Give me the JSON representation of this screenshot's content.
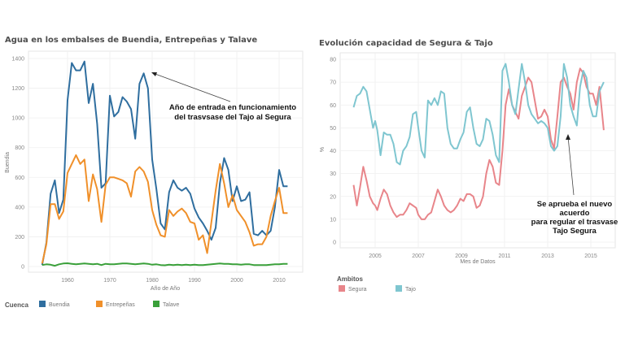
{
  "chart_data": [
    {
      "type": "line",
      "title": "Agua en los embalses de Buendia, Entrepeñas y Talave",
      "xlabel": "Año de Año",
      "ylabel": "Buendia",
      "xlim": [
        1950.7,
        2015.5
      ],
      "ylim": [
        0,
        1400
      ],
      "yticks": [
        0,
        200,
        400,
        600,
        800,
        1000,
        1200,
        1400
      ],
      "xticks": [
        1960,
        1970,
        1980,
        1990,
        2000,
        2010
      ],
      "grid": true,
      "legend": {
        "title": "Cuenca",
        "placement": "bottom-left"
      },
      "annotation": {
        "lines": [
          "Año de entrada en funcionamiento",
          "del trasvsase del Tajo al Segura"
        ],
        "points_to": {
          "x": 1980,
          "y": 1300
        }
      },
      "x": [
        1954,
        1955,
        1956,
        1957,
        1958,
        1959,
        1960,
        1961,
        1962,
        1963,
        1964,
        1965,
        1966,
        1967,
        1968,
        1969,
        1970,
        1971,
        1972,
        1973,
        1974,
        1975,
        1976,
        1977,
        1978,
        1979,
        1980,
        1981,
        1982,
        1983,
        1984,
        1985,
        1986,
        1987,
        1988,
        1989,
        1990,
        1991,
        1992,
        1993,
        1994,
        1995,
        1996,
        1997,
        1998,
        1999,
        2000,
        2001,
        2002,
        2003,
        2004,
        2005,
        2006,
        2007,
        2008,
        2009,
        2010,
        2011,
        2012
      ],
      "series": [
        {
          "name": "Buendia",
          "color": "#2f6e9f",
          "values": [
            10,
            160,
            490,
            580,
            360,
            450,
            1120,
            1370,
            1320,
            1320,
            1380,
            1100,
            1230,
            960,
            530,
            560,
            1150,
            1010,
            1040,
            1140,
            1110,
            1060,
            860,
            1230,
            1300,
            1200,
            720,
            520,
            290,
            250,
            500,
            580,
            530,
            510,
            530,
            490,
            390,
            330,
            290,
            240,
            180,
            260,
            560,
            730,
            650,
            440,
            540,
            440,
            450,
            500,
            220,
            210,
            240,
            210,
            240,
            400,
            650,
            540,
            540
          ],
          "_note": "values"
        },
        {
          "name": "Entrepeñas",
          "color": "#f0902a",
          "values": [
            20,
            150,
            420,
            420,
            320,
            370,
            630,
            690,
            750,
            690,
            720,
            440,
            620,
            520,
            300,
            550,
            600,
            600,
            590,
            580,
            560,
            470,
            640,
            670,
            640,
            570,
            380,
            280,
            210,
            200,
            380,
            340,
            370,
            390,
            360,
            300,
            290,
            180,
            210,
            90,
            300,
            510,
            690,
            560,
            400,
            480,
            380,
            340,
            300,
            230,
            140,
            150,
            150,
            200,
            340,
            440,
            530,
            360,
            360
          ]
        },
        {
          "name": "Talave",
          "color": "#3aa03a",
          "values": [
            10,
            15,
            12,
            5,
            15,
            20,
            22,
            18,
            15,
            18,
            20,
            18,
            15,
            18,
            10,
            18,
            15,
            15,
            18,
            20,
            20,
            18,
            15,
            18,
            20,
            18,
            12,
            15,
            10,
            8,
            12,
            10,
            12,
            10,
            12,
            10,
            12,
            10,
            10,
            12,
            15,
            18,
            20,
            18,
            18,
            15,
            15,
            12,
            15,
            15,
            10,
            10,
            10,
            10,
            12,
            15,
            15,
            18,
            18
          ]
        }
      ]
    },
    {
      "type": "line",
      "title": "Evolución capacidad de Segura & Tajo",
      "xlabel": "Mes de Datos",
      "ylabel": "%",
      "xlim": [
        2003.4,
        2016.1
      ],
      "ylim": [
        0,
        80
      ],
      "yticks": [
        0,
        10,
        20,
        30,
        40,
        50,
        60,
        70,
        80
      ],
      "xticks": [
        2005,
        2007,
        2009,
        2011,
        2013,
        2015
      ],
      "grid": true,
      "legend": {
        "title": "Ambitos",
        "placement": "bottom-left"
      },
      "annotation": {
        "lines": [
          "Se aprueba el nuevo",
          "acuerdo",
          "para regular el trasvase",
          "Tajo Segura"
        ],
        "points_to": {
          "x": 2013.95,
          "y": 51
        }
      },
      "x": [
        2004.0,
        2004.15,
        2004.3,
        2004.45,
        2004.6,
        2004.75,
        2004.9,
        2005.0,
        2005.1,
        2005.25,
        2005.4,
        2005.55,
        2005.7,
        2005.85,
        2006.0,
        2006.15,
        2006.3,
        2006.45,
        2006.6,
        2006.75,
        2006.9,
        2007.0,
        2007.15,
        2007.3,
        2007.45,
        2007.6,
        2007.75,
        2007.9,
        2008.05,
        2008.2,
        2008.35,
        2008.5,
        2008.65,
        2008.8,
        2008.95,
        2009.1,
        2009.25,
        2009.4,
        2009.55,
        2009.7,
        2009.85,
        2010.0,
        2010.15,
        2010.3,
        2010.45,
        2010.6,
        2010.75,
        2010.9,
        2011.05,
        2011.2,
        2011.35,
        2011.5,
        2011.65,
        2011.8,
        2011.95,
        2012.1,
        2012.25,
        2012.4,
        2012.55,
        2012.7,
        2012.85,
        2013.0,
        2013.15,
        2013.3,
        2013.45,
        2013.6,
        2013.75,
        2013.9,
        2014.05,
        2014.2,
        2014.35,
        2014.5,
        2014.65,
        2014.8,
        2014.95,
        2015.1,
        2015.25,
        2015.4,
        2015.6
      ],
      "series": [
        {
          "name": "Segura",
          "color": "#e8858a",
          "values": [
            25,
            16,
            24,
            33,
            27,
            20,
            17,
            16,
            14,
            19,
            23,
            21,
            16,
            13,
            11,
            12,
            12,
            14,
            17,
            16,
            15,
            12,
            10,
            10,
            12,
            13,
            18,
            23,
            20,
            16,
            14,
            13,
            14,
            16,
            19,
            18,
            21,
            21,
            20,
            15,
            16,
            20,
            30,
            36,
            33,
            26,
            25,
            40,
            60,
            67,
            60,
            57,
            54,
            64,
            68,
            72,
            70,
            62,
            54,
            55,
            58,
            55,
            45,
            41,
            55,
            70,
            72,
            68,
            65,
            58,
            70,
            76,
            74,
            68,
            65,
            65,
            60,
            68,
            49
          ],
          "_note": "values"
        },
        {
          "name": "Tajo",
          "color": "#7fc6d0",
          "values": [
            59,
            64,
            65,
            68,
            66,
            58,
            50,
            53,
            49,
            38,
            48,
            47,
            47,
            43,
            35,
            34,
            40,
            42,
            46,
            56,
            57,
            50,
            40,
            37,
            62,
            60,
            63,
            60,
            66,
            65,
            50,
            43,
            41,
            41,
            45,
            48,
            57,
            59,
            50,
            43,
            42,
            45,
            54,
            53,
            47,
            38,
            35,
            75,
            78,
            70,
            60,
            56,
            67,
            78,
            70,
            60,
            56,
            54,
            52,
            53,
            52,
            50,
            42,
            40,
            42,
            55,
            78,
            72,
            60,
            55,
            51,
            68,
            75,
            72,
            60,
            55,
            55,
            66,
            70
          ]
        }
      ]
    }
  ]
}
